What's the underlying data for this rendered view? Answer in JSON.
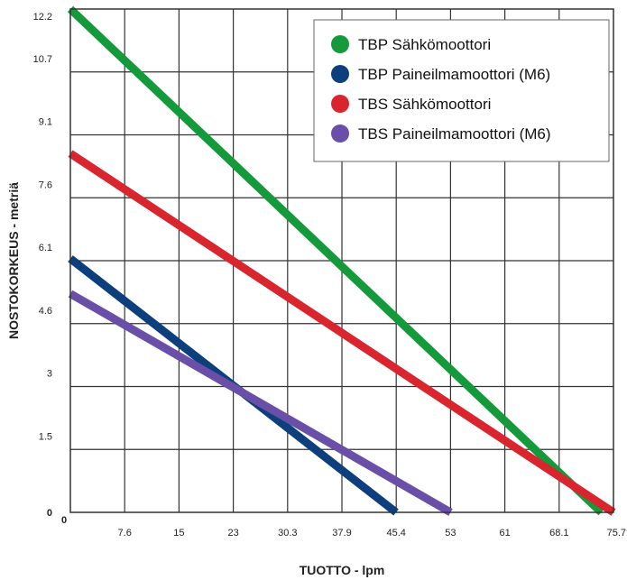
{
  "chart_data": {
    "type": "line",
    "title": "",
    "xlabel": "TUOTTO - lpm",
    "ylabel": "NOSTOKORKEUS - metriä",
    "x_ticks": [
      "0",
      "7.6",
      "15",
      "23",
      "30.3",
      "37.9",
      "45.4",
      "53",
      "61",
      "68.1",
      "75.7"
    ],
    "y_ticks": [
      "0",
      "1.5",
      "3",
      "4.6",
      "6.1",
      "7.6",
      "9.1",
      "10.7",
      "12.2"
    ],
    "xlim": [
      0,
      75.7
    ],
    "ylim": [
      0,
      12.2
    ],
    "grid": true,
    "legend_position": "top-right",
    "series": [
      {
        "name": "TBP Sähkömoottori",
        "color": "#14993b",
        "points": [
          [
            0,
            12.2
          ],
          [
            74.0,
            0
          ]
        ]
      },
      {
        "name": "TBP Paineilmamoottori (M6)",
        "color": "#0c3f7c",
        "points": [
          [
            0,
            6.15
          ],
          [
            45.4,
            0
          ]
        ]
      },
      {
        "name": "TBS Sähkömoottori",
        "color": "#d9262e",
        "points": [
          [
            0,
            8.7
          ],
          [
            75.7,
            0
          ]
        ]
      },
      {
        "name": "TBS Paineilmamoottori (M6)",
        "color": "#6a4fa8",
        "points": [
          [
            0,
            5.3
          ],
          [
            53.0,
            0
          ]
        ]
      }
    ]
  }
}
